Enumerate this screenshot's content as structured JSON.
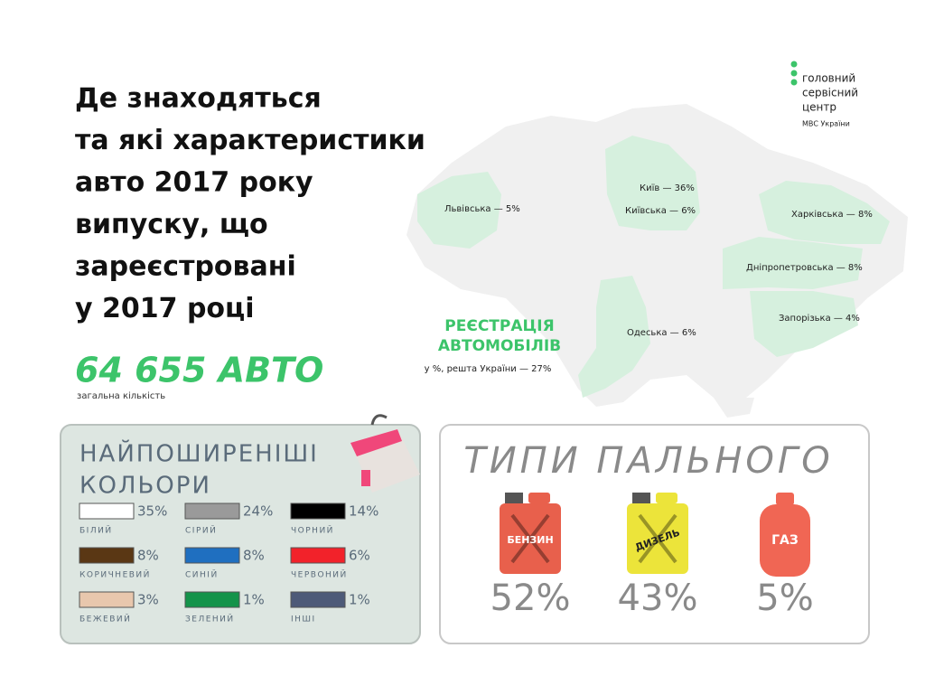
{
  "header": {
    "title_lines": [
      "Де знаходяться",
      "та які характеристики",
      "авто 2017 року",
      "випуску, що",
      "зареєстровані",
      "у 2017 році"
    ],
    "total": "64 655 АВТО",
    "total_caption": "загальна кількість"
  },
  "logo": {
    "lines": [
      "головний",
      "сервісний",
      "центр"
    ],
    "sub": "МВС України"
  },
  "map": {
    "title_lines": [
      "РЕЄСТРАЦІЯ",
      "АВТОМОБІЛІВ"
    ],
    "subtitle": "у %, решта України — 27%",
    "regions": [
      {
        "label": "Львівська — 5%"
      },
      {
        "label": "Київ — 36%"
      },
      {
        "label": "Київська — 6%"
      },
      {
        "label": "Харківська — 8%"
      },
      {
        "label": "Дніпропетровська — 8%"
      },
      {
        "label": "Запорізька — 4%"
      },
      {
        "label": "Одеська — 6%"
      }
    ]
  },
  "colors": {
    "title_lines": [
      "НАЙПОШИРЕНІШІ",
      "КОЛЬОРИ"
    ],
    "items": [
      {
        "name": "БІЛИЙ",
        "share": "35%",
        "swatch": "#ffffff"
      },
      {
        "name": "СІРИЙ",
        "share": "24%",
        "swatch": "#9a9a9a"
      },
      {
        "name": "ЧОРНИЙ",
        "share": "14%",
        "swatch": "#000000"
      },
      {
        "name": "КОРИЧНЕВИЙ",
        "share": "8%",
        "swatch": "#5a3714"
      },
      {
        "name": "СИНІЙ",
        "share": "8%",
        "swatch": "#1f6fc0"
      },
      {
        "name": "ЧЕРВОНИЙ",
        "share": "6%",
        "swatch": "#f2222a"
      },
      {
        "name": "БЕЖЕВИЙ",
        "share": "3%",
        "swatch": "#e8c7ad"
      },
      {
        "name": "ЗЕЛЕНИЙ",
        "share": "1%",
        "swatch": "#14934a"
      },
      {
        "name": "ІНШІ",
        "share": "1%",
        "swatch": "#4d5a78"
      }
    ]
  },
  "fuel": {
    "title": "ТИПИ ПАЛЬНОГО",
    "items": [
      {
        "name": "БЕНЗИН",
        "share": "52%",
        "color": "#e8604c"
      },
      {
        "name": "ДИЗЕЛЬ",
        "share": "43%",
        "color": "#ece43a"
      },
      {
        "name": "ГАЗ",
        "share": "5%",
        "color": "#f06654"
      }
    ]
  }
}
